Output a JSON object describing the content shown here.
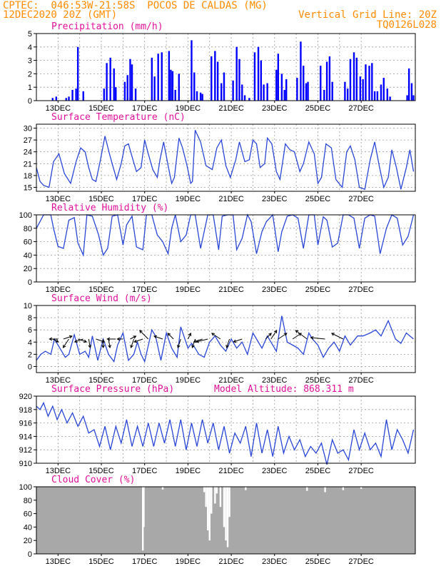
{
  "header": {
    "line1_left": "CPTEC:  046:53W-21:58S  POCOS DE CALDAS (MG)",
    "line2_left": "12DEC2020 20Z (GMT)",
    "line2_right": "Vertical Grid Line: 20Z",
    "line3_right": "TQ0126L028"
  },
  "chart_data": [
    {
      "type": "bar",
      "title": "Precipitation (mm/h)",
      "ylim": [
        0,
        5
      ],
      "yticks": [
        0,
        1,
        2,
        3,
        4,
        5
      ],
      "xticks": [
        "13DEC",
        "15DEC",
        "17DEC",
        "19DEC",
        "21DEC",
        "23DEC",
        "25DEC",
        "27DEC"
      ],
      "grid": true,
      "color": "#0000ff",
      "x_hours": [
        18,
        22,
        33,
        36,
        40,
        44,
        46,
        52,
        75,
        78,
        82,
        86,
        88,
        98,
        101,
        104,
        106,
        110,
        128,
        131,
        135,
        139,
        147,
        149,
        151,
        154,
        158,
        172,
        175,
        178,
        182,
        184,
        194,
        198,
        201,
        205,
        208,
        218,
        222,
        225,
        228,
        231,
        236,
        242,
        246,
        249,
        252,
        256,
        266,
        268,
        272,
        275,
        277,
        289,
        293,
        296,
        299,
        301,
        315,
        319,
        322,
        325,
        328,
        342,
        345,
        348,
        352,
        355,
        359,
        362,
        365,
        369,
        372,
        375,
        378,
        382,
        385,
        389,
        392,
        411,
        413,
        416,
        418
      ],
      "values": [
        0.2,
        0.3,
        0.2,
        0.3,
        0.8,
        0.9,
        4.0,
        0.7,
        0.9,
        2.8,
        3.2,
        2.4,
        1.0,
        1.4,
        1.9,
        3.1,
        2.7,
        0.9,
        3.2,
        1.8,
        3.5,
        3.6,
        3.7,
        2.3,
        2.2,
        0.8,
        2.0,
        4.5,
        2.1,
        0.7,
        0.6,
        0.5,
        3.3,
        3.7,
        2.9,
        1.3,
        2.1,
        1.5,
        4.0,
        3.1,
        1.2,
        0.4,
        0.2,
        3.6,
        4.0,
        3.0,
        1.2,
        1.3,
        2.3,
        3.5,
        2.0,
        0.8,
        1.6,
        1.7,
        4.4,
        2.6,
        1.3,
        1.4,
        2.6,
        0.8,
        2.9,
        3.3,
        1.4,
        1.4,
        0.9,
        3.1,
        3.6,
        3.2,
        1.8,
        1.6,
        2.7,
        2.6,
        2.8,
        0.7,
        0.7,
        1.2,
        1.7,
        0.9,
        0.3,
        0.4,
        2.4,
        1.3,
        0.4
      ]
    },
    {
      "type": "line",
      "title": "Surface Temperature (nC)",
      "ylim": [
        14,
        31
      ],
      "yticks": [
        15,
        18,
        21,
        24,
        27,
        30
      ],
      "xticks": [
        "13DEC",
        "15DEC",
        "17DEC",
        "19DEC",
        "21DEC",
        "23DEC",
        "25DEC",
        "27DEC"
      ],
      "grid": true,
      "color": "#2a46d6",
      "x_hours": [
        0,
        4,
        8,
        14,
        19,
        25,
        31,
        38,
        44,
        49,
        54,
        58,
        62,
        66,
        71,
        76,
        81,
        84,
        89,
        94,
        98,
        102,
        107,
        111,
        116,
        120,
        124,
        129,
        134,
        137,
        141,
        146,
        150,
        153,
        158,
        162,
        167,
        171,
        173,
        176,
        182,
        188,
        195,
        200,
        205,
        210,
        215,
        221,
        225,
        231,
        236,
        240,
        244,
        248,
        253,
        256,
        261,
        266,
        270,
        276,
        281,
        286,
        292,
        296,
        302,
        308,
        312,
        316,
        321,
        327,
        332,
        339,
        344,
        348,
        353,
        358,
        364,
        370,
        375,
        380,
        385,
        390,
        394,
        399,
        404,
        410,
        414,
        418
      ],
      "values": [
        20.0,
        16.5,
        15.5,
        15.0,
        21.5,
        23.5,
        18.5,
        16.0,
        21.5,
        25.0,
        24.0,
        20.0,
        17.0,
        16.5,
        22.0,
        28.0,
        23.5,
        21.0,
        17.0,
        21.0,
        25.5,
        26.0,
        22.0,
        19.0,
        20.0,
        27.0,
        23.5,
        19.5,
        17.5,
        22.0,
        26.5,
        20.5,
        16.0,
        17.5,
        27.5,
        25.0,
        20.5,
        16.0,
        16.5,
        29.5,
        26.5,
        20.5,
        19.5,
        25.0,
        27.0,
        20.5,
        17.5,
        22.0,
        26.5,
        21.5,
        22.0,
        27.0,
        26.0,
        20.0,
        21.0,
        27.5,
        26.0,
        19.0,
        17.0,
        26.0,
        24.5,
        24.0,
        19.0,
        21.0,
        26.5,
        23.5,
        16.0,
        17.5,
        26.0,
        25.0,
        17.0,
        15.0,
        24.0,
        25.5,
        22.0,
        15.0,
        14.5,
        22.0,
        26.5,
        20.5,
        15.0,
        17.5,
        24.5,
        20.0,
        14.5,
        20.0,
        24.5,
        19.0
      ]
    },
    {
      "type": "line",
      "title": "Relative Humidity (%)",
      "ylim": [
        0,
        100
      ],
      "yticks": [
        0,
        20,
        40,
        60,
        80,
        100
      ],
      "xticks": [
        "13DEC",
        "15DEC",
        "17DEC",
        "19DEC",
        "21DEC",
        "23DEC",
        "25DEC",
        "27DEC"
      ],
      "grid": true,
      "color": "#2a46d6",
      "x_hours": [
        0,
        4,
        8,
        12,
        16,
        19,
        24,
        30,
        36,
        42,
        46,
        52,
        56,
        62,
        69,
        74,
        79,
        84,
        90,
        96,
        100,
        106,
        111,
        118,
        122,
        128,
        134,
        140,
        146,
        150,
        154,
        160,
        166,
        171,
        176,
        182,
        190,
        196,
        202,
        206,
        212,
        218,
        222,
        228,
        234,
        238,
        244,
        250,
        255,
        262,
        268,
        272,
        278,
        284,
        290,
        296,
        302,
        308,
        312,
        318,
        322,
        328,
        334,
        340,
        346,
        352,
        358,
        364,
        370,
        375,
        381,
        388,
        394,
        400,
        406,
        412,
        418
      ],
      "values": [
        80,
        90,
        100,
        100,
        100,
        80,
        53,
        50,
        92,
        96,
        58,
        40,
        100,
        98,
        70,
        40,
        50,
        98,
        100,
        55,
        85,
        98,
        52,
        48,
        100,
        100,
        70,
        60,
        42,
        80,
        100,
        60,
        70,
        100,
        100,
        50,
        100,
        100,
        48,
        98,
        100,
        100,
        48,
        65,
        100,
        90,
        42,
        75,
        90,
        100,
        45,
        75,
        98,
        100,
        95,
        50,
        100,
        100,
        55,
        97,
        92,
        52,
        58,
        100,
        100,
        95,
        50,
        95,
        100,
        98,
        42,
        80,
        100,
        95,
        55,
        68,
        100
      ]
    },
    {
      "type": "line",
      "title": "Surface Wind (m/s)",
      "ylim": [
        -1,
        10
      ],
      "yticks": [
        0,
        2,
        4,
        6,
        8,
        10
      ],
      "xticks": [
        "13DEC",
        "15DEC",
        "17DEC",
        "19DEC",
        "21DEC",
        "23DEC",
        "25DEC",
        "27DEC"
      ],
      "grid": true,
      "color": "#2a46d6",
      "x_hours": [
        0,
        5,
        10,
        16,
        20,
        26,
        32,
        36,
        42,
        48,
        54,
        58,
        62,
        68,
        74,
        80,
        86,
        90,
        96,
        102,
        108,
        112,
        116,
        120,
        128,
        132,
        138,
        144,
        150,
        156,
        160,
        168,
        172,
        176,
        180,
        186,
        192,
        198,
        204,
        210,
        216,
        222,
        228,
        234,
        240,
        244,
        250,
        256,
        260,
        266,
        272,
        278,
        284,
        290,
        296,
        302,
        306,
        312,
        318,
        324,
        330,
        336,
        342,
        348,
        356,
        362,
        370,
        376,
        382,
        390,
        398,
        404,
        410,
        418
      ],
      "values": [
        1.0,
        2.0,
        2.5,
        2.0,
        4.5,
        3.0,
        1.5,
        2.0,
        5.2,
        2.0,
        2.5,
        1.5,
        5.0,
        1.0,
        4.5,
        2.0,
        0.8,
        3.5,
        5.5,
        1.0,
        2.0,
        4.0,
        2.0,
        0.8,
        6.0,
        5.0,
        1.0,
        5.5,
        3.0,
        1.5,
        6.5,
        3.0,
        3.8,
        3.0,
        2.0,
        1.5,
        4.0,
        5.0,
        3.5,
        2.5,
        4.5,
        3.0,
        4.0,
        2.0,
        5.5,
        4.5,
        3.0,
        5.0,
        4.0,
        2.5,
        8.3,
        4.0,
        3.5,
        3.0,
        2.0,
        5.5,
        4.5,
        3.5,
        1.5,
        3.0,
        4.0,
        2.5,
        5.0,
        3.5,
        5.0,
        5.0,
        5.5,
        6.0,
        5.0,
        7.5,
        4.5,
        3.8,
        5.5,
        4.5
      ],
      "arrows_u": [
        2,
        -3,
        3,
        -2,
        3,
        -3,
        0.5,
        3,
        0,
        0.5,
        -3,
        -2,
        2,
        -1,
        -3,
        -3,
        -3,
        -2,
        -1,
        1,
        -1,
        -3,
        -4,
        -3,
        -1,
        -3,
        2,
        2,
        3,
        3,
        -4,
        -5,
        -4
      ],
      "arrows_v": [
        -1,
        0,
        1,
        -3,
        -1,
        -1,
        -3,
        -1,
        -3,
        -3,
        0,
        0,
        1,
        -3,
        -1,
        3,
        1,
        2,
        -3,
        2,
        -3,
        -1,
        -1,
        2,
        -3,
        -1,
        2,
        3,
        2,
        2,
        3,
        0.5,
        2
      ],
      "arrows_x_hours": [
        18,
        24,
        30,
        36,
        46,
        52,
        58,
        66,
        74,
        80,
        88,
        96,
        104,
        108,
        118,
        124,
        140,
        152,
        160,
        168,
        176,
        184,
        190,
        204,
        214,
        228,
        254,
        260,
        268,
        284,
        300,
        320,
        340
      ]
    },
    {
      "type": "line",
      "title": "Surface Pressure (hPa)",
      "annotation": "Model Altitude: 868.311 m",
      "ylim": [
        910,
        920
      ],
      "yticks": [
        910,
        912,
        914,
        916,
        918,
        920
      ],
      "xticks": [
        "13DEC",
        "15DEC",
        "17DEC",
        "19DEC",
        "21DEC",
        "23DEC",
        "25DEC",
        "27DEC"
      ],
      "grid": true,
      "color": "#2a46d6",
      "x_hours": [
        0,
        4,
        8,
        13,
        18,
        23,
        28,
        34,
        40,
        46,
        52,
        58,
        64,
        70,
        76,
        82,
        88,
        94,
        100,
        106,
        112,
        118,
        124,
        130,
        136,
        142,
        148,
        154,
        160,
        166,
        172,
        178,
        184,
        190,
        196,
        202,
        208,
        214,
        220,
        226,
        232,
        238,
        244,
        250,
        256,
        262,
        268,
        274,
        280,
        286,
        292,
        298,
        304,
        310,
        316,
        322,
        328,
        334,
        340,
        346,
        352,
        358,
        364,
        370,
        376,
        382,
        388,
        394,
        400,
        406,
        412,
        418
      ],
      "values": [
        918.5,
        918.0,
        919.0,
        917.0,
        918.5,
        916.5,
        918.0,
        916.0,
        917.5,
        915.5,
        917.0,
        914.5,
        915.0,
        912.5,
        915.5,
        912.0,
        915.5,
        913.0,
        916.5,
        912.5,
        915.5,
        912.5,
        916.0,
        912.5,
        916.0,
        913.0,
        916.5,
        912.5,
        916.5,
        912.0,
        916.0,
        912.5,
        916.5,
        913.0,
        916.0,
        912.0,
        915.5,
        911.5,
        914.5,
        913.0,
        915.5,
        911.0,
        916.0,
        911.5,
        915.0,
        911.0,
        915.5,
        911.5,
        914.0,
        912.0,
        913.5,
        911.0,
        912.5,
        911.5,
        913.0,
        909.8,
        913.5,
        911.5,
        912.0,
        910.5,
        915.0,
        912.0,
        914.5,
        912.0,
        913.0,
        911.0,
        916.5,
        912.0,
        915.0,
        913.5,
        911.5,
        915.0
      ]
    },
    {
      "type": "bar",
      "title": "Cloud Cover (%)",
      "ylim": [
        0,
        100
      ],
      "yticks": [
        0,
        20,
        40,
        60,
        80,
        100
      ],
      "xticks": [
        "13DEC",
        "15DEC",
        "17DEC",
        "19DEC",
        "21DEC",
        "23DEC",
        "25DEC",
        "27DEC"
      ],
      "grid": true,
      "color": "#a8a8a8",
      "gaps": [
        {
          "hour": 118,
          "value": 5
        },
        {
          "hour": 119,
          "value": 40
        },
        {
          "hour": 140,
          "value": 96
        },
        {
          "hour": 186,
          "value": 92
        },
        {
          "hour": 188,
          "value": 70
        },
        {
          "hour": 190,
          "value": 35
        },
        {
          "hour": 192,
          "value": 20
        },
        {
          "hour": 194,
          "value": 60
        },
        {
          "hour": 198,
          "value": 75
        },
        {
          "hour": 200,
          "value": 90
        },
        {
          "hour": 204,
          "value": 70
        },
        {
          "hour": 208,
          "value": 40
        },
        {
          "hour": 210,
          "value": 20
        },
        {
          "hour": 212,
          "value": 10
        },
        {
          "hour": 214,
          "value": 55
        },
        {
          "hour": 232,
          "value": 95
        },
        {
          "hour": 300,
          "value": 94
        },
        {
          "hour": 320,
          "value": 92
        },
        {
          "hour": 340,
          "value": 95
        },
        {
          "hour": 360,
          "value": 97
        }
      ]
    }
  ]
}
